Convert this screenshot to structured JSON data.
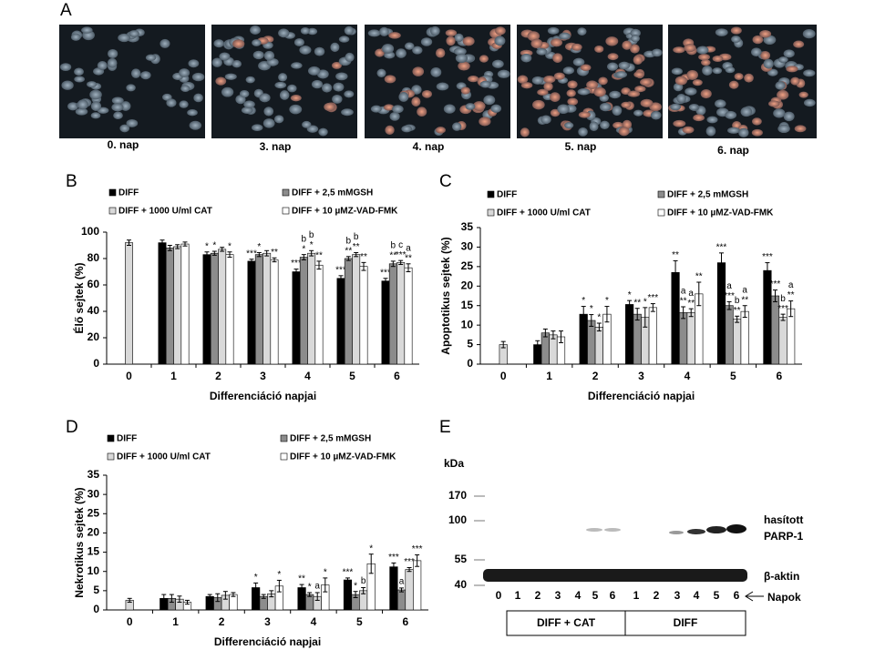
{
  "panel_a": {
    "label": "A",
    "captions": [
      "0. nap",
      "3. nap",
      "4. nap",
      "5. nap",
      "6. nap"
    ]
  },
  "chart_data": [
    {
      "type": "bar",
      "label": "B",
      "y_label": "Élő sejtek (%)",
      "x_label": "Differenciáció napjai",
      "categories": [
        "0",
        "1",
        "2",
        "3",
        "4",
        "5",
        "6"
      ],
      "ylim": [
        0,
        100
      ],
      "yticks": [
        0,
        20,
        40,
        60,
        80,
        100
      ],
      "series": [
        {
          "name": "DIFF",
          "color": "#000000",
          "values": [
            null,
            92,
            83,
            78,
            70,
            65,
            63
          ],
          "errors": [
            null,
            2,
            2,
            1.5,
            2,
            2,
            2
          ],
          "stars": [
            null,
            null,
            "*",
            "***",
            "***",
            "***",
            "***"
          ],
          "letters": [
            null,
            null,
            null,
            null,
            null,
            null,
            null
          ]
        },
        {
          "name": "DIFF + 2,5 mMGSH",
          "color": "#8c8c8c",
          "values": [
            null,
            88,
            84,
            83,
            81,
            80,
            76
          ],
          "errors": [
            null,
            2,
            1.5,
            1.5,
            2,
            1.5,
            2
          ],
          "stars": [
            null,
            null,
            "*",
            "*",
            "*",
            "**",
            "**"
          ],
          "letters": [
            null,
            null,
            null,
            null,
            "b",
            "b",
            "b"
          ]
        },
        {
          "name": "DIFF + 1000 U/ml CAT",
          "color": "#d9d9d9",
          "values": [
            92,
            89,
            87,
            84,
            84,
            83,
            77
          ],
          "errors": [
            2,
            1.5,
            1.5,
            2,
            2,
            1.5,
            1.5
          ],
          "stars": [
            null,
            null,
            null,
            null,
            "*",
            "**",
            "***"
          ],
          "letters": [
            null,
            null,
            null,
            null,
            "b",
            "b",
            "c"
          ]
        },
        {
          "name": "DIFF + 10 µMZ-VAD-FMK",
          "color": "#ffffff",
          "values": [
            null,
            91,
            83,
            79,
            75,
            74,
            73
          ],
          "errors": [
            null,
            1.5,
            2,
            1.5,
            3,
            3,
            3
          ],
          "stars": [
            null,
            null,
            "*",
            "**",
            "**",
            "**",
            "**"
          ],
          "letters": [
            null,
            null,
            null,
            null,
            null,
            null,
            "a"
          ]
        }
      ]
    },
    {
      "type": "bar",
      "label": "C",
      "y_label": "Apoptotikus sejtek (%)",
      "x_label": "Differenciáció napjai",
      "categories": [
        "0",
        "1",
        "2",
        "3",
        "4",
        "5",
        "6"
      ],
      "ylim": [
        0,
        35
      ],
      "yticks": [
        0,
        5,
        10,
        15,
        20,
        25,
        30,
        35
      ],
      "series": [
        {
          "name": "DIFF",
          "color": "#000000",
          "values": [
            null,
            5,
            12.8,
            15.3,
            23.5,
            26,
            24
          ],
          "errors": [
            null,
            1,
            2,
            1,
            3,
            2.5,
            2
          ],
          "stars": [
            null,
            null,
            "*",
            "*",
            "**",
            "***",
            "***"
          ],
          "letters": [
            null,
            null,
            null,
            null,
            null,
            null,
            null
          ]
        },
        {
          "name": "DIFF + 2,5 mMGSH",
          "color": "#8c8c8c",
          "values": [
            null,
            8,
            11.2,
            12.8,
            13.2,
            15,
            17.5
          ],
          "errors": [
            null,
            1,
            1.5,
            1.5,
            1.5,
            1,
            1.5
          ],
          "stars": [
            null,
            null,
            "*",
            "**",
            "**",
            "***",
            "***"
          ],
          "letters": [
            null,
            null,
            null,
            null,
            "a",
            "a",
            null
          ]
        },
        {
          "name": "DIFF + 1000 U/ml CAT",
          "color": "#d9d9d9",
          "values": [
            5,
            7.5,
            9.5,
            12,
            13.2,
            11.5,
            12
          ],
          "errors": [
            0.8,
            1,
            1,
            2.5,
            1,
            0.8,
            0.8
          ],
          "stars": [
            null,
            null,
            "*",
            "*",
            "**",
            "**",
            "***"
          ],
          "letters": [
            null,
            null,
            null,
            null,
            "a",
            "b",
            "b"
          ]
        },
        {
          "name": "DIFF + 10 µMZ-VAD-FMK",
          "color": "#ffffff",
          "values": [
            null,
            7,
            12.8,
            14.5,
            18,
            13.5,
            14.2
          ],
          "errors": [
            null,
            1.5,
            2,
            1,
            3,
            1.5,
            2
          ],
          "stars": [
            null,
            null,
            "*",
            "***",
            "**",
            "**",
            "**"
          ],
          "letters": [
            null,
            null,
            null,
            null,
            null,
            "a",
            "a"
          ]
        }
      ]
    },
    {
      "type": "bar",
      "label": "D",
      "y_label": "Nekrotikus sejtek (%)",
      "x_label": "Differenciáció napjai",
      "categories": [
        "0",
        "1",
        "2",
        "3",
        "4",
        "5",
        "6"
      ],
      "ylim": [
        0,
        35
      ],
      "yticks": [
        0,
        5,
        10,
        15,
        20,
        25,
        30,
        35
      ],
      "series": [
        {
          "name": "DIFF",
          "color": "#000000",
          "values": [
            null,
            3,
            3.5,
            5.8,
            5.8,
            7.8,
            11.2
          ],
          "errors": [
            null,
            1,
            0.5,
            1.2,
            0.8,
            0.5,
            1
          ],
          "stars": [
            null,
            null,
            null,
            "*",
            "**",
            "***",
            "***"
          ],
          "letters": [
            null,
            null,
            null,
            null,
            null,
            null,
            null
          ]
        },
        {
          "name": "DIFF + 2,5 mMGSH",
          "color": "#8c8c8c",
          "values": [
            null,
            3,
            3.2,
            3.5,
            4,
            4,
            5.2
          ],
          "errors": [
            null,
            1,
            1,
            0.5,
            0.5,
            0.8,
            0.5
          ],
          "stars": [
            null,
            null,
            null,
            null,
            "*",
            "*",
            null
          ],
          "letters": [
            null,
            null,
            null,
            null,
            null,
            null,
            "a"
          ]
        },
        {
          "name": "DIFF + 1000 U/ml CAT",
          "color": "#d9d9d9",
          "values": [
            2.5,
            2.8,
            3.8,
            4.2,
            3.5,
            5,
            10.5
          ],
          "errors": [
            0.5,
            0.8,
            1,
            0.8,
            1,
            0.8,
            0.5
          ],
          "stars": [
            null,
            null,
            null,
            null,
            null,
            null,
            "***"
          ],
          "letters": [
            null,
            null,
            null,
            null,
            "a",
            "b",
            null
          ]
        },
        {
          "name": "DIFF + 10 µMZ-VAD-FMK",
          "color": "#ffffff",
          "values": [
            null,
            2,
            4,
            6.2,
            6.5,
            12,
            12.8
          ],
          "errors": [
            null,
            0.5,
            0.5,
            1.5,
            1.8,
            2.5,
            1.5
          ],
          "stars": [
            null,
            null,
            null,
            "*",
            "*",
            "*",
            "***"
          ],
          "letters": [
            null,
            null,
            null,
            null,
            null,
            null,
            null
          ]
        }
      ]
    }
  ],
  "panel_e": {
    "label": "E",
    "unit": "kDa",
    "markers": [
      "170",
      "100",
      "55",
      "40"
    ],
    "lanes": [
      "0",
      "1",
      "2",
      "3",
      "4",
      "5",
      "6",
      "1",
      "2",
      "3",
      "4",
      "5",
      "6"
    ],
    "band_top": [
      "hasított",
      "PARP-1"
    ],
    "band_bottom": "β-aktin",
    "lanes_label": "Napok",
    "groups": [
      "DIFF + CAT",
      "DIFF"
    ]
  }
}
